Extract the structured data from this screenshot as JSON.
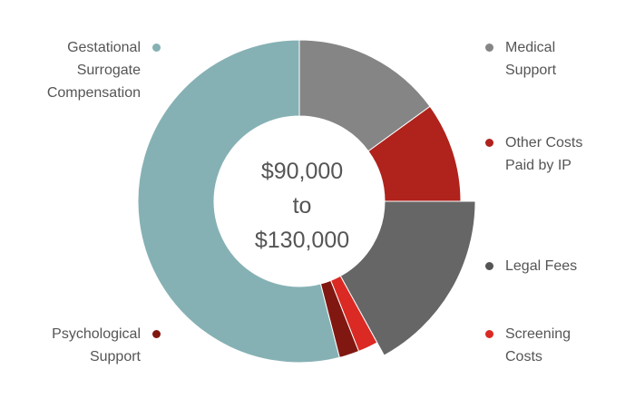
{
  "chart_data": {
    "type": "pie",
    "style": "donut",
    "center_label": [
      "$90,000",
      "to",
      "$130,000"
    ],
    "slices": [
      {
        "name": "Medical\nSupport",
        "value": 15,
        "color": "#858585"
      },
      {
        "name": "Other Costs\nPaid by IP",
        "value": 10,
        "color": "#B0221C"
      },
      {
        "name": "Legal Fees",
        "value": 17,
        "color": "#666666",
        "outer_offset": 1.09
      },
      {
        "name": "Screening\nCosts",
        "value": 2,
        "color": "#DA2A23"
      },
      {
        "name": "Psychological\nSupport",
        "value": 2,
        "color": "#801811"
      },
      {
        "name": "Gestational\nSurrogate\nCompensation",
        "value": 54,
        "color": "#86B1B4"
      }
    ]
  }
}
